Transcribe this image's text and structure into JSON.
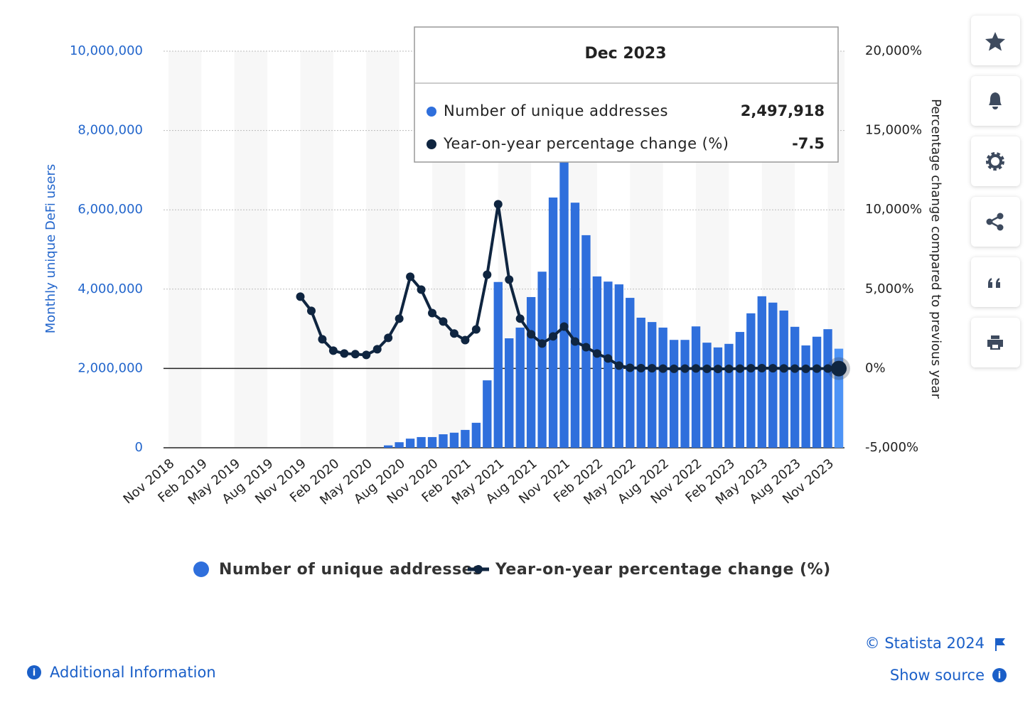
{
  "chart_data": {
    "type": "bar_line",
    "y_label": "Monthly unique DeFi users",
    "y2_label": "Percentage change compared to previous year",
    "categories": [
      "Nov 2018",
      null,
      null,
      "Feb 2019",
      null,
      null,
      "May 2019",
      null,
      null,
      "Aug 2019",
      null,
      null,
      "Nov 2019",
      null,
      null,
      "Feb 2020",
      null,
      null,
      "May 2020",
      null,
      null,
      "Aug 2020",
      null,
      null,
      "Nov 2020",
      null,
      null,
      "Feb 2021",
      null,
      null,
      "May 2021",
      null,
      null,
      "Aug 2021",
      null,
      null,
      "Nov 2021",
      null,
      null,
      "Feb 2022",
      null,
      null,
      "May 2022",
      null,
      null,
      "Aug 2022",
      null,
      null,
      "Nov 2022",
      null,
      null,
      "Feb 2023",
      null,
      null,
      "May 2023",
      null,
      null,
      "Aug 2023",
      null,
      null,
      "Nov 2023",
      null
    ],
    "series": [
      {
        "name": "Number of unique addresses",
        "color": "#2f6fdc",
        "highlight_color": "#4d93f6",
        "values": [
          0,
          0,
          0,
          0,
          0,
          0,
          0,
          0,
          0,
          0,
          0,
          0,
          0,
          0,
          0,
          0,
          0,
          0,
          0,
          0,
          60000,
          140000,
          230000,
          270000,
          270000,
          340000,
          380000,
          450000,
          630000,
          1700000,
          4180000,
          2760000,
          3030000,
          3800000,
          4440000,
          6310000,
          7200000,
          6180000,
          5360000,
          4320000,
          4190000,
          4120000,
          3780000,
          3280000,
          3170000,
          3030000,
          2720000,
          2720000,
          3060000,
          2650000,
          2530000,
          2620000,
          2920000,
          3390000,
          3820000,
          3660000,
          3460000,
          3050000,
          2580000,
          2800000,
          2990000,
          2497918
        ]
      },
      {
        "name": "Year-on-year percentage change (%)",
        "color": "#0f2540",
        "axis": "y2",
        "values": [
          null,
          null,
          null,
          null,
          null,
          null,
          null,
          null,
          null,
          null,
          null,
          null,
          4525,
          3630,
          1840,
          1120,
          940,
          900,
          850,
          1210,
          1930,
          3140,
          5780,
          4970,
          3490,
          2960,
          2200,
          1790,
          2460,
          5910,
          10350,
          5600,
          3140,
          2150,
          1570,
          2020,
          2640,
          1700,
          1340,
          940,
          630,
          180,
          40,
          20,
          10,
          -10,
          -20,
          -10,
          0,
          -20,
          -30,
          -20,
          -10,
          10,
          20,
          10,
          0,
          -10,
          -20,
          -10,
          -5,
          -7.5
        ]
      }
    ],
    "ylim": [
      0,
      10000000
    ],
    "yticks": [
      0,
      {
        "value": 2000000,
        "label": "2,000,000"
      },
      {
        "value": 4000000,
        "label": "4,000,000"
      },
      {
        "value": 6000000,
        "label": "6,000,000"
      },
      {
        "value": 8000000,
        "label": "8,000,000"
      },
      {
        "value": 10000000,
        "label": "10,000,000"
      }
    ],
    "y2lim": [
      -5000,
      20000
    ],
    "y2ticks": [
      {
        "value": -5000,
        "label": "-5,000%"
      },
      {
        "value": 0,
        "label": "0%"
      },
      {
        "value": 5000,
        "label": "5,000%"
      },
      {
        "value": 10000,
        "label": "10,000%"
      },
      {
        "value": 15000,
        "label": "15,000%"
      },
      {
        "value": 20000,
        "label": "20,000%"
      }
    ],
    "grid": true,
    "tooltip": {
      "title": "Dec 2023",
      "labels": [
        "2,497,918",
        "-7.5"
      ]
    }
  },
  "page": {
    "copyright": "© Statista 2024",
    "show_source": "Show source",
    "additional_info": "Additional Information"
  }
}
